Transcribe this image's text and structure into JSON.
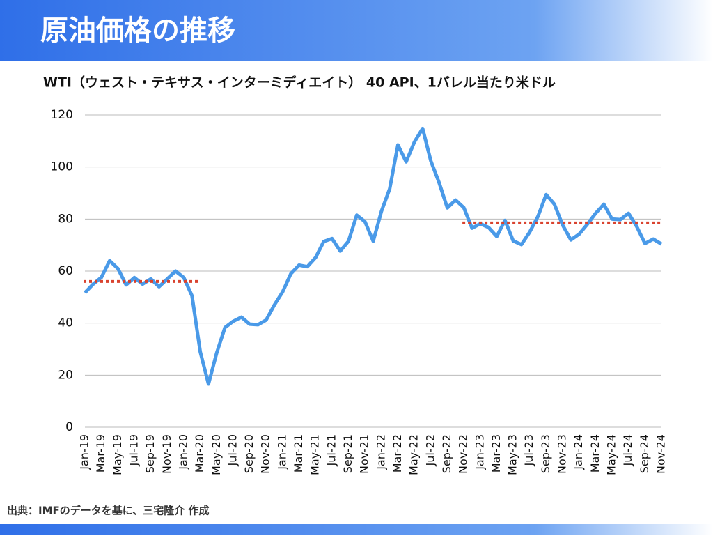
{
  "header": {
    "title": "原油価格の推移"
  },
  "chart_data": {
    "type": "line",
    "title": "WTI（ウェスト・テキサス・インターミディエイト） 40 API、1バレル当たり米ドル",
    "categories": [
      "Jan-19",
      null,
      "Mar-19",
      null,
      "May-19",
      null,
      "Jul-19",
      null,
      "Sep-19",
      null,
      "Nov-19",
      null,
      "Jan-20",
      null,
      "Mar-20",
      null,
      "May-20",
      null,
      "Jul-20",
      null,
      "Sep-20",
      null,
      "Nov-20",
      null,
      "Jan-21",
      null,
      "Mar-21",
      null,
      "May-21",
      null,
      "Jul-21",
      null,
      "Sep-21",
      null,
      "Nov-21",
      null,
      "Jan-22",
      null,
      "Mar-22",
      null,
      "May-22",
      null,
      "Jul-22",
      null,
      "Sep-22",
      null,
      "Nov-22",
      null,
      "Jan-23",
      null,
      "Mar-23",
      null,
      "May-23",
      null,
      "Jul-23",
      null,
      "Sep-23",
      null,
      "Nov-23",
      null,
      "Jan-24",
      null,
      "Mar-24",
      null,
      "May-24",
      null,
      "Jul-24",
      null,
      "Sep-24",
      null,
      "Nov-24"
    ],
    "series": [
      {
        "color": "#4a9ae8",
        "values": [
          51.7,
          55,
          57.6,
          64,
          61,
          54.7,
          57.5,
          55,
          57,
          54,
          57,
          60,
          57.5,
          50.5,
          29,
          16.6,
          28.6,
          38.3,
          40.7,
          42.3,
          39.6,
          39.4,
          41.2,
          47,
          52,
          59,
          62.3,
          61.7,
          65.2,
          71.4,
          72.5,
          67.7,
          71.5,
          81.5,
          79,
          71.5,
          83,
          91.6,
          108.5,
          102,
          109.6,
          114.8,
          102.3,
          94,
          84.3,
          87.3,
          84.4,
          76.5,
          78.2,
          76.8,
          73.3,
          79.5,
          71.6,
          70.2,
          75,
          81,
          89.4,
          85.7,
          77.7,
          72,
          74.2,
          78,
          82.2,
          85.7,
          80,
          79.8,
          82.2,
          77.1,
          70.6,
          72.3,
          70.4
        ]
      }
    ],
    "reference_lines": [
      {
        "value": 56,
        "start": "Jan-19",
        "end": "Mar-20",
        "color": "#d9432f"
      },
      {
        "value": 78.5,
        "start": "Nov-22",
        "end": "Nov-24",
        "color": "#d9432f"
      }
    ],
    "ylim": [
      0,
      120
    ],
    "yticks": [
      0,
      20,
      40,
      60,
      80,
      100,
      120
    ],
    "grid": true
  },
  "footer": {
    "source": "出典：IMFのデータを基に、三宅隆介 作成"
  }
}
